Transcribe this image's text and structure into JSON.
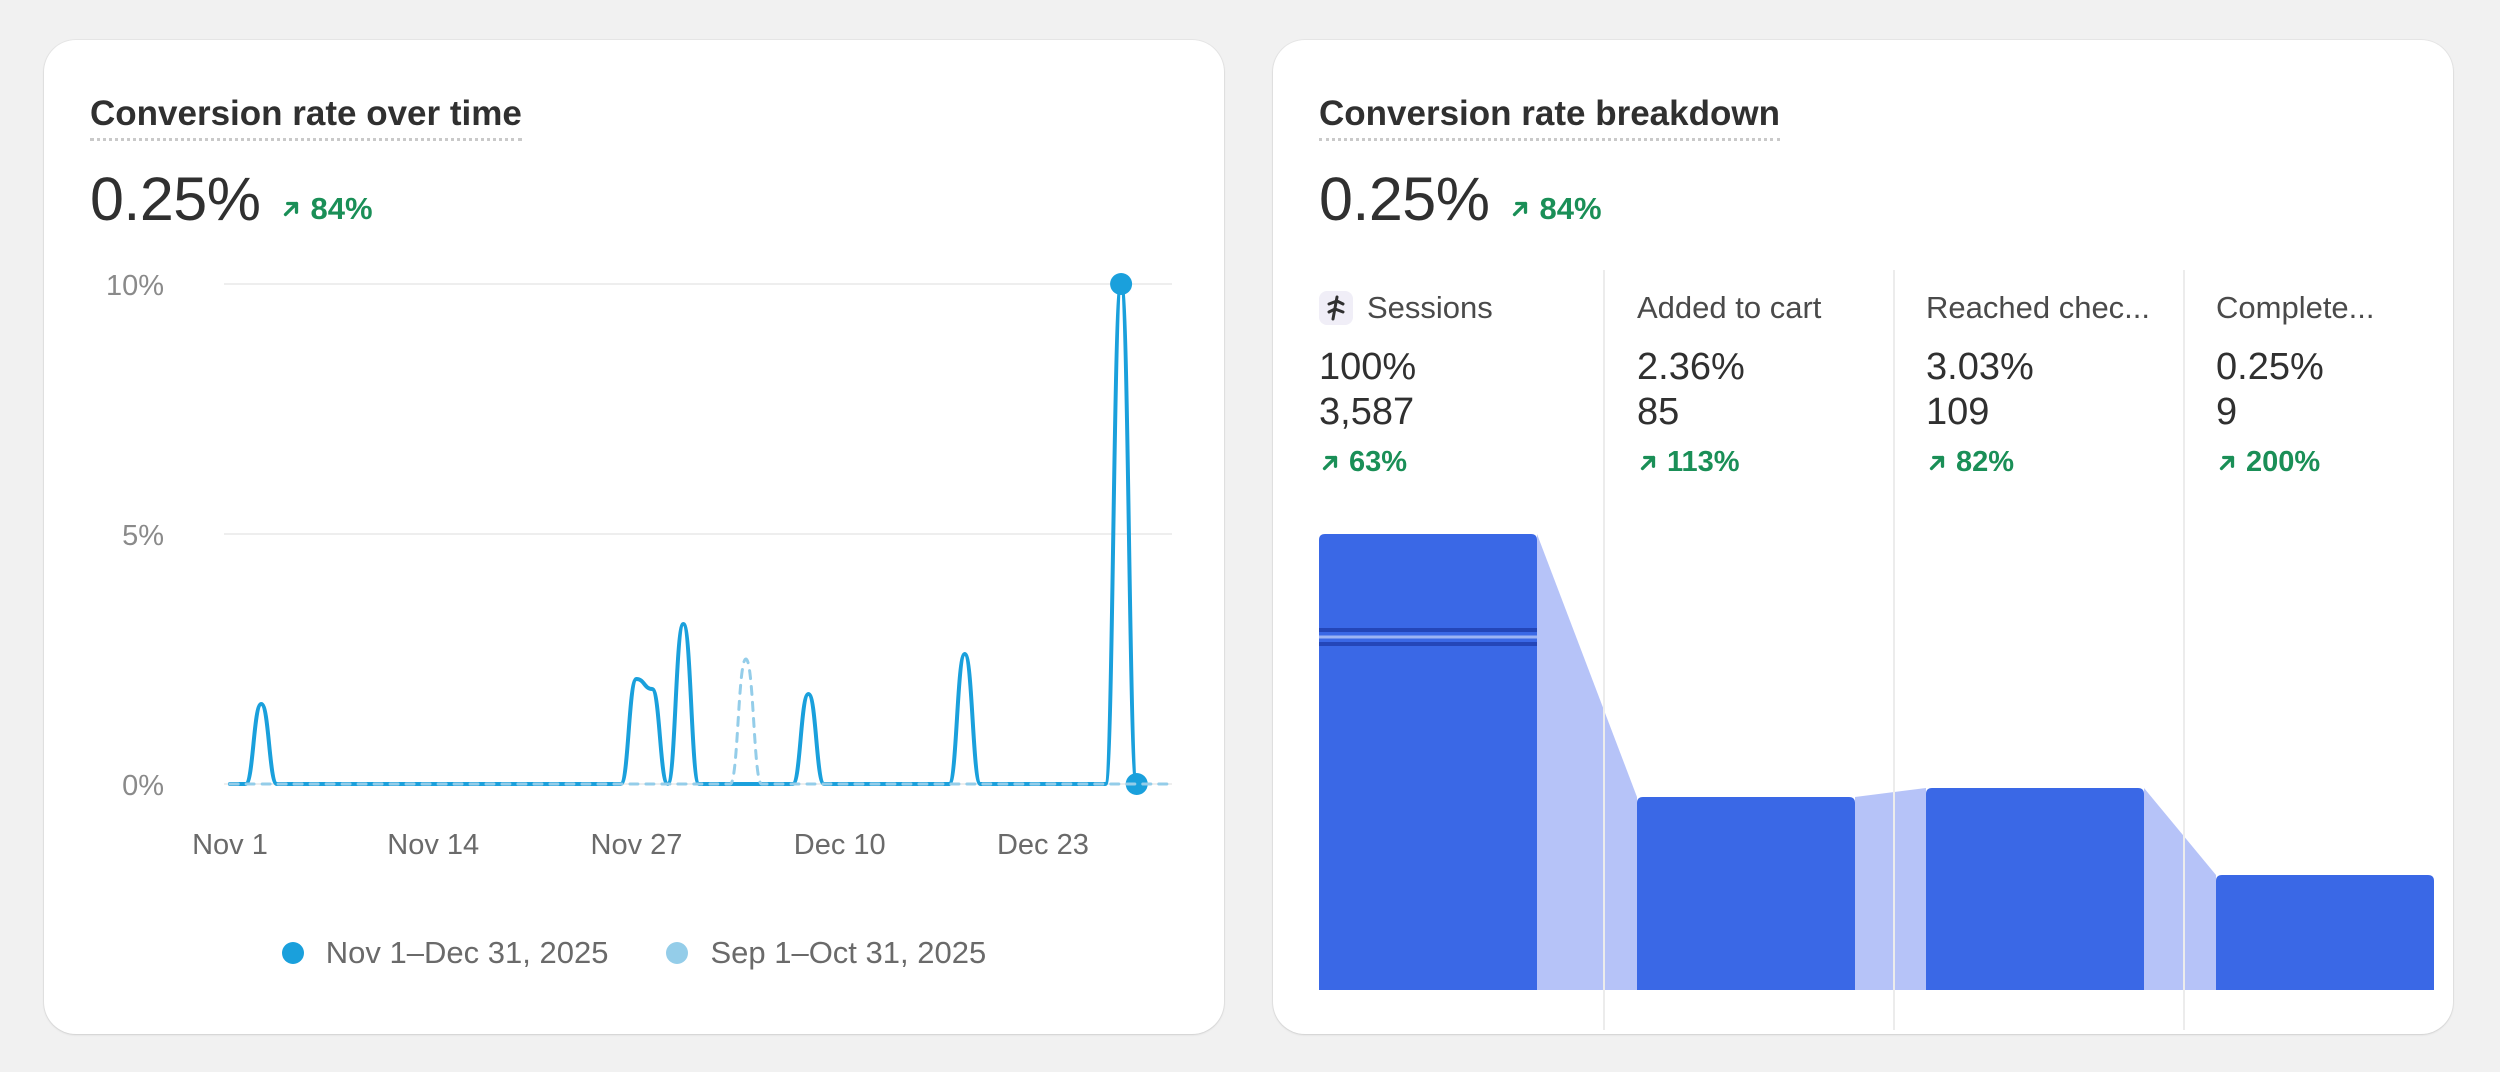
{
  "conversion_over_time": {
    "title": "Conversion rate over time",
    "value": "0.25%",
    "change": "84%",
    "y_tick_labels": [
      "10%",
      "5%",
      "0%"
    ],
    "x_tick_labels": [
      "Nov 1",
      "Nov 14",
      "Nov 27",
      "Dec 10",
      "Dec 23"
    ],
    "legend": [
      {
        "label": "Nov 1–Dec 31, 2025",
        "color": "#1aa0dc"
      },
      {
        "label": "Sep 1–Oct 31, 2025",
        "color": "#94cde9"
      }
    ]
  },
  "breakdown": {
    "title": "Conversion rate breakdown",
    "value": "0.25%",
    "change": "84%",
    "steps": [
      {
        "label": "Sessions",
        "percent": "100%",
        "count": "3,587",
        "change": "63%",
        "icon": "sessions-icon"
      },
      {
        "label": "Added to cart",
        "percent": "2.36%",
        "count": "85",
        "change": "113%"
      },
      {
        "label": "Reached chec...",
        "percent": "3.03%",
        "count": "109",
        "change": "82%"
      },
      {
        "label": "Complete...",
        "percent": "0.25%",
        "count": "9",
        "change": "200%"
      }
    ]
  },
  "colors": {
    "current_series": "#1aa0dc",
    "previous_series": "#94cde9",
    "funnel_bar": "#3a68e6",
    "funnel_connector": "#a9b9f7",
    "positive_trend": "#1a8f57"
  },
  "chart_data": [
    {
      "type": "line",
      "title": "Conversion rate over time",
      "xlabel": "",
      "ylabel": "",
      "ylim": [
        0,
        10
      ],
      "y_unit": "%",
      "x_range": [
        "2025-11-01",
        "2025-12-31"
      ],
      "grid": true,
      "legend_position": "bottom",
      "series": [
        {
          "name": "Nov 1–Dec 31, 2025",
          "x": [
            "2025-11-01",
            "2025-11-02",
            "2025-11-03",
            "2025-11-04",
            "2025-11-05",
            "2025-11-25",
            "2025-11-26",
            "2025-11-27",
            "2025-11-28",
            "2025-11-29",
            "2025-11-30",
            "2025-12-01",
            "2025-12-02",
            "2025-12-07",
            "2025-12-08",
            "2025-12-09",
            "2025-12-17",
            "2025-12-18",
            "2025-12-19",
            "2025-12-27",
            "2025-12-28",
            "2025-12-29"
          ],
          "y": [
            0,
            0,
            1.6,
            0,
            0,
            0,
            0,
            2.1,
            1.9,
            0,
            3.2,
            0,
            0,
            0,
            1.8,
            0,
            0,
            2.6,
            0,
            0,
            10,
            0
          ]
        },
        {
          "name": "Sep 1–Oct 31, 2025",
          "x": [
            "2025-11-01",
            "2025-12-03",
            "2025-12-04",
            "2025-12-05",
            "2025-12-31"
          ],
          "y": [
            0,
            0,
            2.5,
            0,
            0
          ]
        }
      ]
    },
    {
      "type": "bar",
      "title": "Conversion rate breakdown",
      "categories": [
        "Sessions",
        "Added to cart",
        "Reached chec...",
        "Complete..."
      ],
      "values": [
        3587,
        85,
        109,
        9
      ],
      "percent_labels": [
        "100%",
        "2.36%",
        "3.03%",
        "0.25%"
      ],
      "changes": [
        "63%",
        "113%",
        "82%",
        "200%"
      ]
    }
  ]
}
